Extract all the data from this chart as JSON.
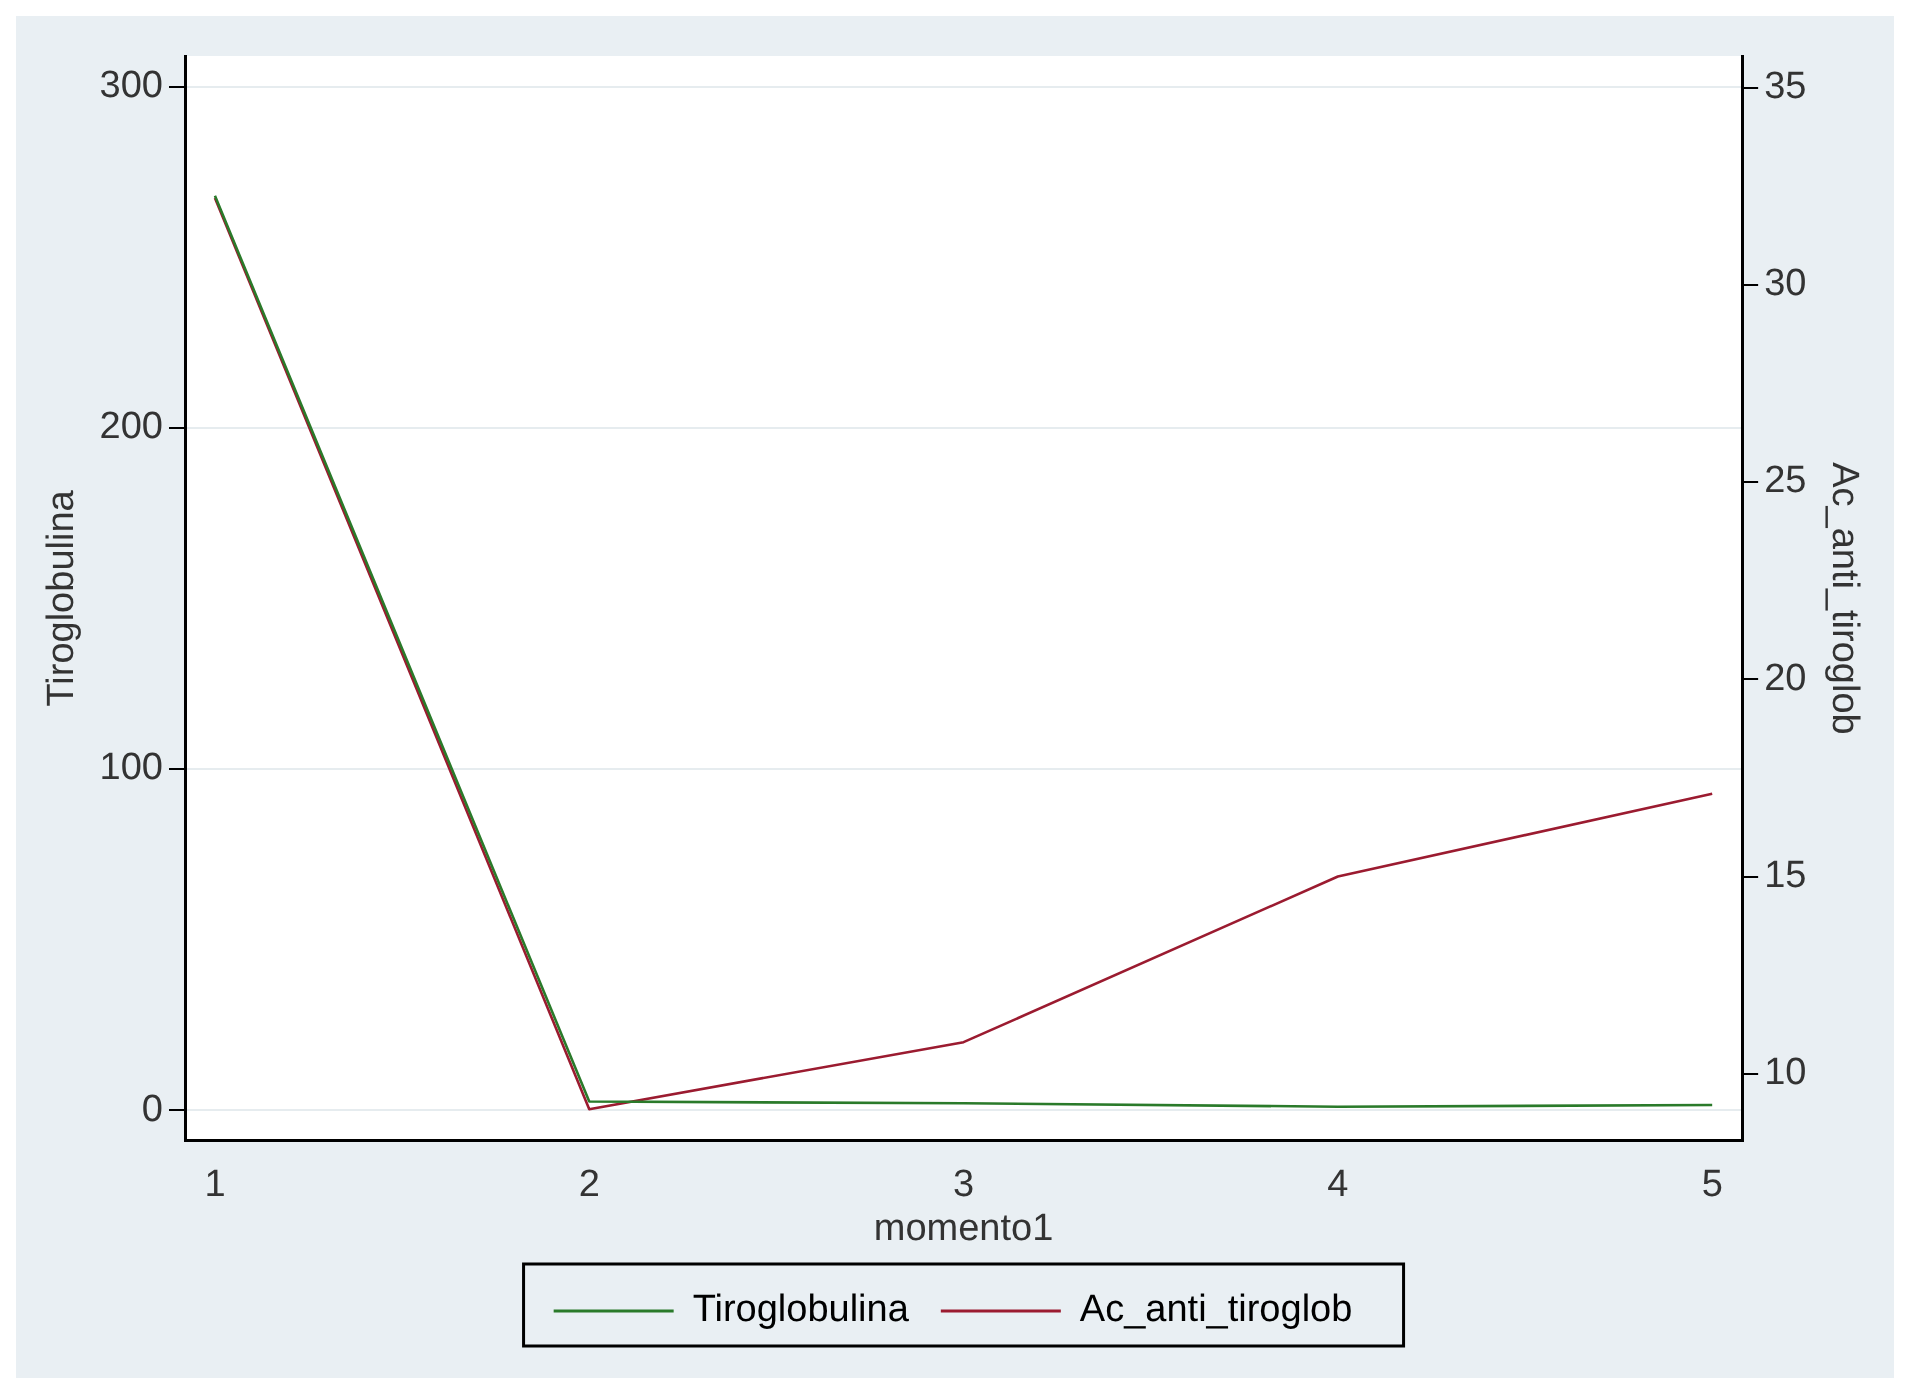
{
  "chart_data": {
    "type": "line",
    "xlabel": "momento1",
    "ylabel": "Tiroglobulina",
    "y2label": "Ac_anti_tiroglob",
    "x": [
      1,
      2,
      3,
      4,
      5
    ],
    "series": [
      {
        "name": "Tiroglobulina",
        "color": "#2a7a2a",
        "values": [
          268,
          2.5,
          2,
          1,
          1.5
        ]
      },
      {
        "name": "Ac_anti_tiroglob",
        "color": "#9b1b30",
        "axis": "y2",
        "values": [
          32.2,
          9.1,
          10.8,
          15,
          17.1
        ]
      }
    ],
    "xlim": [
      0.92,
      5.08
    ],
    "xticks": [
      1,
      2,
      3,
      4,
      5
    ],
    "ylim": [
      -9,
      309
    ],
    "yticks": [
      0,
      100,
      200,
      300
    ],
    "y2lim": [
      8.3,
      35.8
    ],
    "y2ticks": [
      10,
      15,
      20,
      25,
      30,
      35
    ],
    "grid": "y",
    "legend": "bottom",
    "marker": "none",
    "line_style": "solid"
  }
}
